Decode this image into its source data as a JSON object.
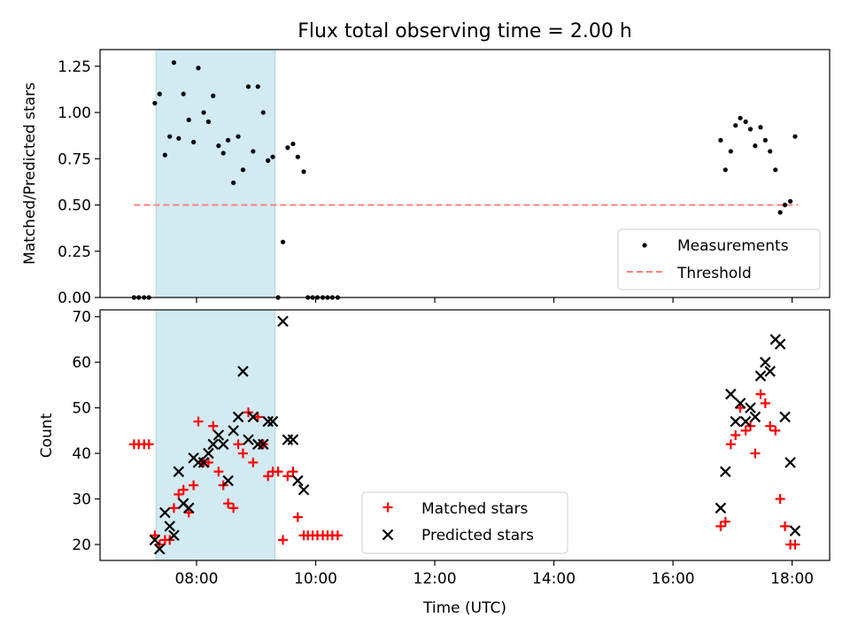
{
  "figure": {
    "title": "Flux total observing time = 2.00 h",
    "xlabel": "Time (UTC)",
    "xticks": [
      "08:00",
      "10:00",
      "12:00",
      "14:00",
      "16:00",
      "18:00"
    ]
  },
  "colors": {
    "shade": "#add8e6",
    "measurement": "#000000",
    "threshold": "#ff7f7f",
    "matched": "#ff0000",
    "predicted": "#000000"
  },
  "chart_data": [
    {
      "type": "scatter",
      "panel": "top",
      "ylabel": "Matched/Predicted stars",
      "xlim": [
        6.38,
        18.63
      ],
      "ylim": [
        0,
        1.34
      ],
      "yticks": [
        "0.00",
        "0.25",
        "0.50",
        "0.75",
        "1.00",
        "1.25"
      ],
      "shaded_interval": [
        7.32,
        9.32
      ],
      "legend_position": "lower right",
      "threshold": {
        "name": "Threshold",
        "value": 0.5,
        "x_range": [
          6.95,
          18.1
        ]
      },
      "series": [
        {
          "name": "Measurements",
          "points": [
            [
              6.95,
              0
            ],
            [
              7.03,
              0
            ],
            [
              7.12,
              0
            ],
            [
              7.2,
              0
            ],
            [
              7.3,
              1.05
            ],
            [
              7.38,
              1.1
            ],
            [
              7.47,
              0.77
            ],
            [
              7.55,
              0.87
            ],
            [
              7.62,
              1.27
            ],
            [
              7.7,
              0.86
            ],
            [
              7.78,
              1.1
            ],
            [
              7.87,
              0.96
            ],
            [
              7.95,
              0.84
            ],
            [
              8.03,
              1.24
            ],
            [
              8.12,
              1.0
            ],
            [
              8.2,
              0.95
            ],
            [
              8.28,
              1.09
            ],
            [
              8.37,
              0.82
            ],
            [
              8.45,
              0.78
            ],
            [
              8.53,
              0.85
            ],
            [
              8.62,
              0.62
            ],
            [
              8.7,
              0.87
            ],
            [
              8.78,
              0.69
            ],
            [
              8.87,
              1.14
            ],
            [
              8.95,
              0.79
            ],
            [
              9.03,
              1.14
            ],
            [
              9.12,
              1.0
            ],
            [
              9.2,
              0.74
            ],
            [
              9.28,
              0.76
            ],
            [
              9.37,
              0
            ],
            [
              9.45,
              0.3
            ],
            [
              9.53,
              0.81
            ],
            [
              9.62,
              0.83
            ],
            [
              9.7,
              0.76
            ],
            [
              9.8,
              0.68
            ],
            [
              9.87,
              0
            ],
            [
              9.95,
              0
            ],
            [
              10.03,
              0
            ],
            [
              10.12,
              0
            ],
            [
              10.2,
              0
            ],
            [
              10.28,
              0
            ],
            [
              10.37,
              0
            ],
            [
              16.8,
              0.85
            ],
            [
              16.88,
              0.69
            ],
            [
              16.97,
              0.79
            ],
            [
              17.05,
              0.93
            ],
            [
              17.13,
              0.97
            ],
            [
              17.22,
              0.95
            ],
            [
              17.3,
              0.91
            ],
            [
              17.38,
              0.82
            ],
            [
              17.47,
              0.92
            ],
            [
              17.55,
              0.85
            ],
            [
              17.63,
              0.79
            ],
            [
              17.72,
              0.69
            ],
            [
              17.8,
              0.46
            ],
            [
              17.88,
              0.5
            ],
            [
              17.97,
              0.52
            ],
            [
              18.05,
              0.87
            ]
          ]
        }
      ]
    },
    {
      "type": "scatter",
      "panel": "bottom",
      "ylabel": "Count",
      "xlim": [
        6.38,
        18.63
      ],
      "ylim": [
        16.5,
        71.5
      ],
      "yticks": [
        "20",
        "30",
        "40",
        "50",
        "60",
        "70"
      ],
      "shaded_interval": [
        7.32,
        9.32
      ],
      "legend_position": "lower center",
      "series": [
        {
          "name": "Matched stars",
          "marker": "plus",
          "points": [
            [
              6.95,
              42
            ],
            [
              7.03,
              42
            ],
            [
              7.12,
              42
            ],
            [
              7.2,
              42
            ],
            [
              7.3,
              22
            ],
            [
              7.38,
              20
            ],
            [
              7.47,
              21
            ],
            [
              7.55,
              21
            ],
            [
              7.62,
              28
            ],
            [
              7.7,
              31
            ],
            [
              7.78,
              32
            ],
            [
              7.87,
              27
            ],
            [
              7.95,
              33
            ],
            [
              8.03,
              47
            ],
            [
              8.12,
              38
            ],
            [
              8.2,
              38
            ],
            [
              8.28,
              46
            ],
            [
              8.37,
              36
            ],
            [
              8.45,
              33
            ],
            [
              8.53,
              29
            ],
            [
              8.62,
              28
            ],
            [
              8.7,
              42
            ],
            [
              8.78,
              40
            ],
            [
              8.87,
              49
            ],
            [
              8.95,
              38
            ],
            [
              9.03,
              48
            ],
            [
              9.12,
              42
            ],
            [
              9.2,
              35
            ],
            [
              9.28,
              36
            ],
            [
              9.37,
              36
            ],
            [
              9.45,
              21
            ],
            [
              9.53,
              35
            ],
            [
              9.62,
              36
            ],
            [
              9.7,
              26
            ],
            [
              9.8,
              22
            ],
            [
              9.87,
              22
            ],
            [
              9.95,
              22
            ],
            [
              10.03,
              22
            ],
            [
              10.12,
              22
            ],
            [
              10.2,
              22
            ],
            [
              10.28,
              22
            ],
            [
              10.37,
              22
            ],
            [
              16.8,
              24
            ],
            [
              16.88,
              25
            ],
            [
              16.97,
              42
            ],
            [
              17.05,
              44
            ],
            [
              17.13,
              50
            ],
            [
              17.22,
              45
            ],
            [
              17.3,
              46
            ],
            [
              17.38,
              40
            ],
            [
              17.47,
              53
            ],
            [
              17.55,
              51
            ],
            [
              17.63,
              46
            ],
            [
              17.72,
              45
            ],
            [
              17.8,
              30
            ],
            [
              17.88,
              24
            ],
            [
              17.97,
              20
            ],
            [
              18.05,
              20
            ]
          ]
        },
        {
          "name": "Predicted stars",
          "marker": "x",
          "points": [
            [
              7.3,
              21
            ],
            [
              7.38,
              19
            ],
            [
              7.47,
              27
            ],
            [
              7.55,
              24
            ],
            [
              7.62,
              22
            ],
            [
              7.7,
              36
            ],
            [
              7.78,
              29
            ],
            [
              7.87,
              28
            ],
            [
              7.95,
              39
            ],
            [
              8.03,
              38
            ],
            [
              8.12,
              38
            ],
            [
              8.2,
              40
            ],
            [
              8.28,
              42
            ],
            [
              8.37,
              44
            ],
            [
              8.45,
              42
            ],
            [
              8.53,
              34
            ],
            [
              8.62,
              45
            ],
            [
              8.7,
              48
            ],
            [
              8.78,
              58
            ],
            [
              8.87,
              43
            ],
            [
              8.95,
              48
            ],
            [
              9.03,
              42
            ],
            [
              9.12,
              42
            ],
            [
              9.2,
              47
            ],
            [
              9.28,
              47
            ],
            [
              9.45,
              69
            ],
            [
              9.53,
              43
            ],
            [
              9.62,
              43
            ],
            [
              9.7,
              34
            ],
            [
              9.8,
              32
            ],
            [
              16.8,
              28
            ],
            [
              16.88,
              36
            ],
            [
              16.97,
              53
            ],
            [
              17.05,
              47
            ],
            [
              17.13,
              51
            ],
            [
              17.22,
              47
            ],
            [
              17.3,
              50
            ],
            [
              17.38,
              48
            ],
            [
              17.47,
              57
            ],
            [
              17.55,
              60
            ],
            [
              17.63,
              58
            ],
            [
              17.72,
              65
            ],
            [
              17.8,
              64
            ],
            [
              17.88,
              48
            ],
            [
              17.97,
              38
            ],
            [
              18.05,
              23
            ]
          ]
        }
      ]
    }
  ]
}
